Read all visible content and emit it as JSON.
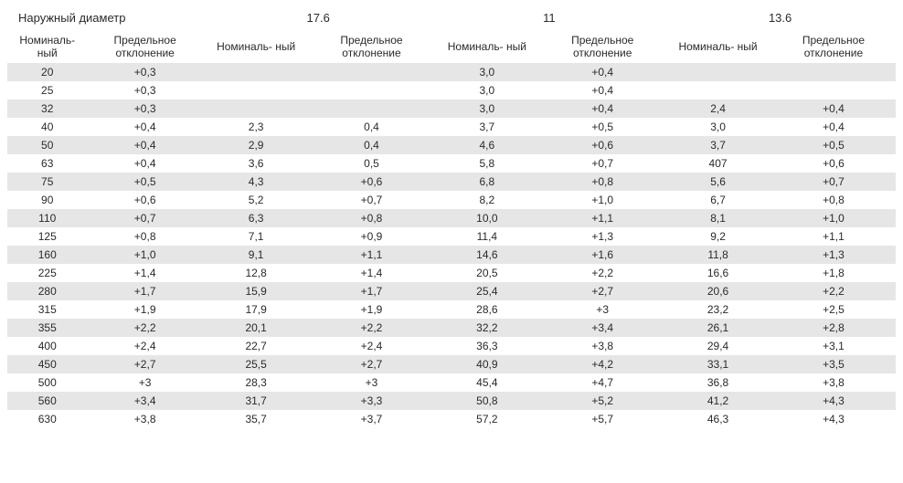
{
  "header": {
    "outerDiameterLabel": "Наружный диаметр",
    "groups": [
      "17.6",
      "11",
      "13.6"
    ],
    "subNominal": "Номиналь-\nный",
    "subDeviation": "Предельное отклонение"
  },
  "style": {
    "stripeColor": "#e6e6e6",
    "background": "#ffffff",
    "textColor": "#2a2a2a",
    "fontSize": 12
  },
  "rows": [
    {
      "d": "20",
      "g1n": "+0,3",
      "g2n": "",
      "g2d": "",
      "g3n": "3,0",
      "g3d": "+0,4",
      "g4n": "",
      "g4d": ""
    },
    {
      "d": "25",
      "g1n": "+0,3",
      "g2n": "",
      "g2d": "",
      "g3n": "3,0",
      "g3d": "+0,4",
      "g4n": "",
      "g4d": ""
    },
    {
      "d": "32",
      "g1n": "+0,3",
      "g2n": "",
      "g2d": "",
      "g3n": "3,0",
      "g3d": "+0,4",
      "g4n": "2,4",
      "g4d": "+0,4"
    },
    {
      "d": "40",
      "g1n": "+0,4",
      "g2n": "2,3",
      "g2d": "0,4",
      "g3n": "3,7",
      "g3d": "+0,5",
      "g4n": "3,0",
      "g4d": "+0,4"
    },
    {
      "d": "50",
      "g1n": "+0,4",
      "g2n": "2,9",
      "g2d": "0,4",
      "g3n": "4,6",
      "g3d": "+0,6",
      "g4n": "3,7",
      "g4d": "+0,5"
    },
    {
      "d": "63",
      "g1n": "+0,4",
      "g2n": "3,6",
      "g2d": "0,5",
      "g3n": "5,8",
      "g3d": "+0,7",
      "g4n": "407",
      "g4d": "+0,6"
    },
    {
      "d": "75",
      "g1n": "+0,5",
      "g2n": "4,3",
      "g2d": "+0,6",
      "g3n": "6,8",
      "g3d": "+0,8",
      "g4n": "5,6",
      "g4d": "+0,7"
    },
    {
      "d": "90",
      "g1n": "+0,6",
      "g2n": "5,2",
      "g2d": "+0,7",
      "g3n": "8,2",
      "g3d": "+1,0",
      "g4n": "6,7",
      "g4d": "+0,8"
    },
    {
      "d": "110",
      "g1n": "+0,7",
      "g2n": "6,3",
      "g2d": "+0,8",
      "g3n": "10,0",
      "g3d": "+1,1",
      "g4n": "8,1",
      "g4d": "+1,0"
    },
    {
      "d": "125",
      "g1n": "+0,8",
      "g2n": "7,1",
      "g2d": "+0,9",
      "g3n": "11,4",
      "g3d": "+1,3",
      "g4n": "9,2",
      "g4d": "+1,1"
    },
    {
      "d": "160",
      "g1n": "+1,0",
      "g2n": "9,1",
      "g2d": "+1,1",
      "g3n": "14,6",
      "g3d": "+1,6",
      "g4n": "11,8",
      "g4d": "+1,3"
    },
    {
      "d": "225",
      "g1n": "+1,4",
      "g2n": "12,8",
      "g2d": "+1,4",
      "g3n": "20,5",
      "g3d": "+2,2",
      "g4n": "16,6",
      "g4d": "+1,8"
    },
    {
      "d": "280",
      "g1n": "+1,7",
      "g2n": "15,9",
      "g2d": "+1,7",
      "g3n": "25,4",
      "g3d": "+2,7",
      "g4n": "20,6",
      "g4d": "+2,2"
    },
    {
      "d": "315",
      "g1n": "+1,9",
      "g2n": "17,9",
      "g2d": "+1,9",
      "g3n": "28,6",
      "g3d": "+3",
      "g4n": "23,2",
      "g4d": "+2,5"
    },
    {
      "d": "355",
      "g1n": "+2,2",
      "g2n": "20,1",
      "g2d": "+2,2",
      "g3n": "32,2",
      "g3d": "+3,4",
      "g4n": "26,1",
      "g4d": "+2,8"
    },
    {
      "d": "400",
      "g1n": "+2,4",
      "g2n": "22,7",
      "g2d": "+2,4",
      "g3n": "36,3",
      "g3d": "+3,8",
      "g4n": "29,4",
      "g4d": "+3,1"
    },
    {
      "d": "450",
      "g1n": "+2,7",
      "g2n": "25,5",
      "g2d": "+2,7",
      "g3n": "40,9",
      "g3d": "+4,2",
      "g4n": "33,1",
      "g4d": "+3,5"
    },
    {
      "d": "500",
      "g1n": "+3",
      "g2n": "28,3",
      "g2d": "+3",
      "g3n": "45,4",
      "g3d": "+4,7",
      "g4n": "36,8",
      "g4d": "+3,8"
    },
    {
      "d": "560",
      "g1n": "+3,4",
      "g2n": "31,7",
      "g2d": "+3,3",
      "g3n": "50,8",
      "g3d": "+5,2",
      "g4n": "41,2",
      "g4d": "+4,3"
    },
    {
      "d": "630",
      "g1n": "+3,8",
      "g2n": "35,7",
      "g2d": "+3,7",
      "g3n": "57,2",
      "g3d": "+5,7",
      "g4n": "46,3",
      "g4d": "+4,3"
    }
  ]
}
